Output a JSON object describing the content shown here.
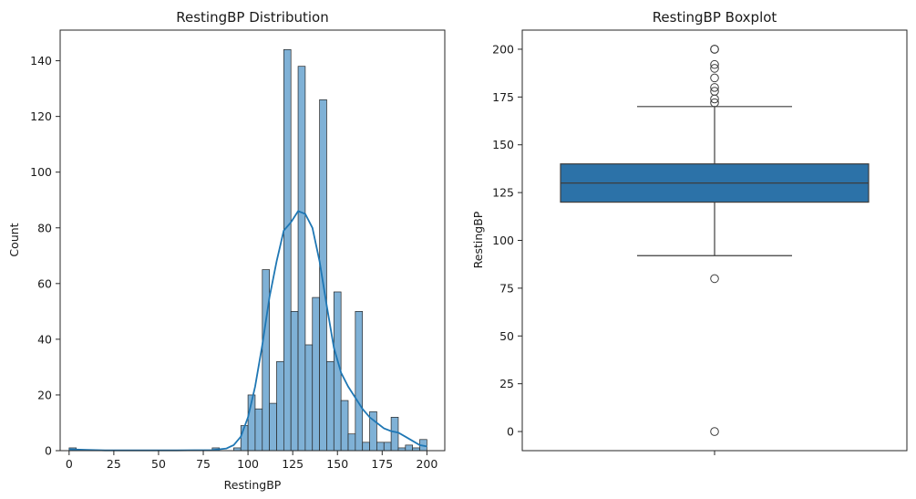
{
  "chart_data": [
    {
      "type": "bar",
      "subtype": "histogram-with-kde",
      "title": "RestingBP Distribution",
      "xlabel": "RestingBP",
      "ylabel": "Count",
      "xlim": [
        -5,
        210
      ],
      "ylim": [
        0,
        151
      ],
      "xticks": [
        0,
        25,
        50,
        75,
        100,
        125,
        150,
        175,
        200
      ],
      "yticks": [
        0,
        20,
        40,
        60,
        80,
        100,
        120,
        140
      ],
      "bin_width": 4,
      "bins": [
        {
          "x": 0,
          "count": 1
        },
        {
          "x": 80,
          "count": 1
        },
        {
          "x": 92,
          "count": 1
        },
        {
          "x": 96,
          "count": 9
        },
        {
          "x": 100,
          "count": 20
        },
        {
          "x": 104,
          "count": 15
        },
        {
          "x": 108,
          "count": 65
        },
        {
          "x": 112,
          "count": 17
        },
        {
          "x": 116,
          "count": 32
        },
        {
          "x": 120,
          "count": 144
        },
        {
          "x": 124,
          "count": 50
        },
        {
          "x": 128,
          "count": 138
        },
        {
          "x": 132,
          "count": 38
        },
        {
          "x": 136,
          "count": 55
        },
        {
          "x": 140,
          "count": 126
        },
        {
          "x": 144,
          "count": 32
        },
        {
          "x": 148,
          "count": 57
        },
        {
          "x": 152,
          "count": 18
        },
        {
          "x": 156,
          "count": 6
        },
        {
          "x": 160,
          "count": 50
        },
        {
          "x": 164,
          "count": 3
        },
        {
          "x": 168,
          "count": 14
        },
        {
          "x": 172,
          "count": 3
        },
        {
          "x": 176,
          "count": 3
        },
        {
          "x": 180,
          "count": 12
        },
        {
          "x": 184,
          "count": 1
        },
        {
          "x": 188,
          "count": 2
        },
        {
          "x": 192,
          "count": 1
        },
        {
          "x": 196,
          "count": 4
        }
      ],
      "kde": {
        "color": "#1f77b4",
        "x": [
          0,
          10,
          20,
          40,
          60,
          80,
          88,
          92,
          96,
          100,
          104,
          108,
          112,
          116,
          120,
          124,
          128,
          132,
          136,
          140,
          144,
          148,
          152,
          156,
          160,
          164,
          168,
          172,
          176,
          180,
          184,
          188,
          192,
          196,
          200
        ],
        "y": [
          0.5,
          0.3,
          0.1,
          0.1,
          0.1,
          0.2,
          0.8,
          2,
          5,
          12,
          23,
          38,
          55,
          68,
          79,
          82,
          86,
          85,
          80,
          68,
          52,
          37,
          28,
          23,
          19,
          15,
          12,
          10,
          8,
          7,
          6.5,
          5,
          3.5,
          2,
          1.5
        ]
      },
      "bar_color": "#7fb1d6"
    },
    {
      "type": "boxplot",
      "title": "RestingBP Boxplot",
      "ylabel": "RestingBP",
      "ylim": [
        -10,
        210
      ],
      "yticks": [
        0,
        25,
        50,
        75,
        100,
        125,
        150,
        175,
        200
      ],
      "box": {
        "q1": 120,
        "median": 130,
        "q3": 140,
        "whisker_low": 92,
        "whisker_high": 170
      },
      "outliers": [
        0,
        80,
        172,
        174,
        178,
        180,
        185,
        190,
        192,
        200,
        200
      ],
      "box_color": "#2c72a8"
    }
  ]
}
